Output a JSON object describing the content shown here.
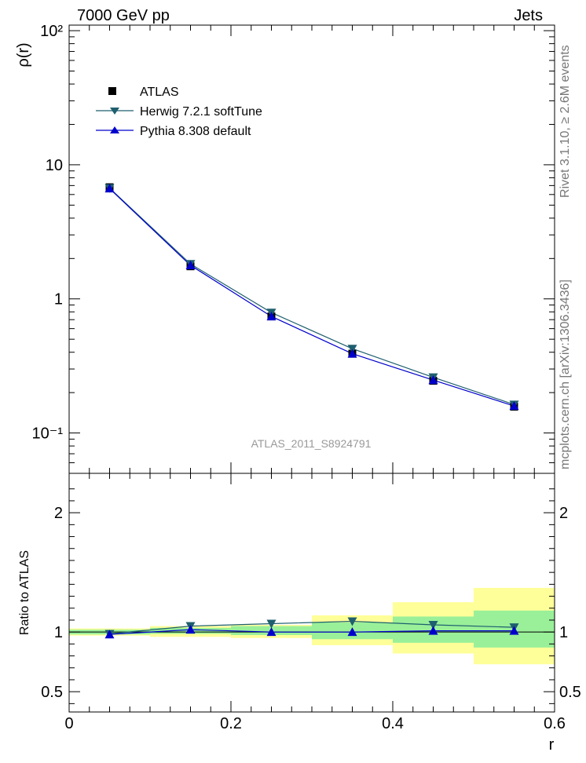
{
  "header": {
    "left_title": "7000 GeV pp",
    "right_title": "Jets"
  },
  "side_text": {
    "rivet": "Rivet 3.1.10, ≥ 2.6M events",
    "source": "mcplots.cern.ch [arXiv:1306.3436]"
  },
  "watermark": "ATLAS_2011_S8924791",
  "legend": {
    "atlas": "ATLAS",
    "herwig": "Herwig 7.2.1 softTune",
    "pythia": "Pythia 8.308 default"
  },
  "colors": {
    "atlas": "#000000",
    "herwig": "#1f5f6f",
    "pythia": "#0000cc",
    "band_inner": "#99f099",
    "band_outer": "#ffff99"
  },
  "chart_data": [
    {
      "type": "line",
      "ylabel": "ρ(r)",
      "xlabel": "",
      "yscale": "log",
      "xlim": [
        0,
        0.6
      ],
      "ylim": [
        0.05,
        110
      ],
      "y_tick_labels": [
        "10⁻¹",
        "1",
        "10",
        "10²"
      ],
      "x": [
        0.05,
        0.15,
        0.25,
        0.35,
        0.45,
        0.55
      ],
      "series": [
        {
          "name": "ATLAS",
          "values": [
            6.8,
            1.75,
            0.74,
            0.39,
            0.245,
            0.157
          ]
        },
        {
          "name": "Herwig 7.2.1 softTune",
          "values": [
            6.7,
            1.82,
            0.79,
            0.425,
            0.26,
            0.163
          ]
        },
        {
          "name": "Pythia 8.308 default",
          "values": [
            6.65,
            1.78,
            0.74,
            0.39,
            0.248,
            0.159
          ]
        }
      ]
    },
    {
      "type": "line",
      "ylabel": "Ratio to ATLAS",
      "xlabel": "r",
      "xlim": [
        0,
        0.6
      ],
      "ylim": [
        0.33,
        2.33
      ],
      "x_tick_labels": [
        "0",
        "0.2",
        "0.4",
        "0.6"
      ],
      "y_tick_labels": [
        "0.5",
        "1",
        "2"
      ],
      "x": [
        0.05,
        0.15,
        0.25,
        0.35,
        0.45,
        0.55
      ],
      "bins": [
        [
          0.0,
          0.1
        ],
        [
          0.1,
          0.2
        ],
        [
          0.2,
          0.3
        ],
        [
          0.3,
          0.4
        ],
        [
          0.4,
          0.5
        ],
        [
          0.5,
          0.6
        ]
      ],
      "band_stat": [
        [
          0.98,
          1.02
        ],
        [
          0.985,
          1.035
        ],
        [
          0.975,
          1.05
        ],
        [
          0.94,
          1.08
        ],
        [
          0.91,
          1.13
        ],
        [
          0.87,
          1.18
        ]
      ],
      "band_total": [
        [
          0.97,
          1.03
        ],
        [
          0.96,
          1.05
        ],
        [
          0.95,
          1.06
        ],
        [
          0.89,
          1.14
        ],
        [
          0.82,
          1.25
        ],
        [
          0.73,
          1.37
        ]
      ],
      "series": [
        {
          "name": "Herwig 7.2.1 softTune",
          "values": [
            0.985,
            1.05,
            1.07,
            1.09,
            1.06,
            1.04
          ]
        },
        {
          "name": "Pythia 8.308 default",
          "values": [
            0.98,
            1.02,
            1.0,
            1.0,
            1.01,
            1.01
          ]
        }
      ]
    }
  ]
}
